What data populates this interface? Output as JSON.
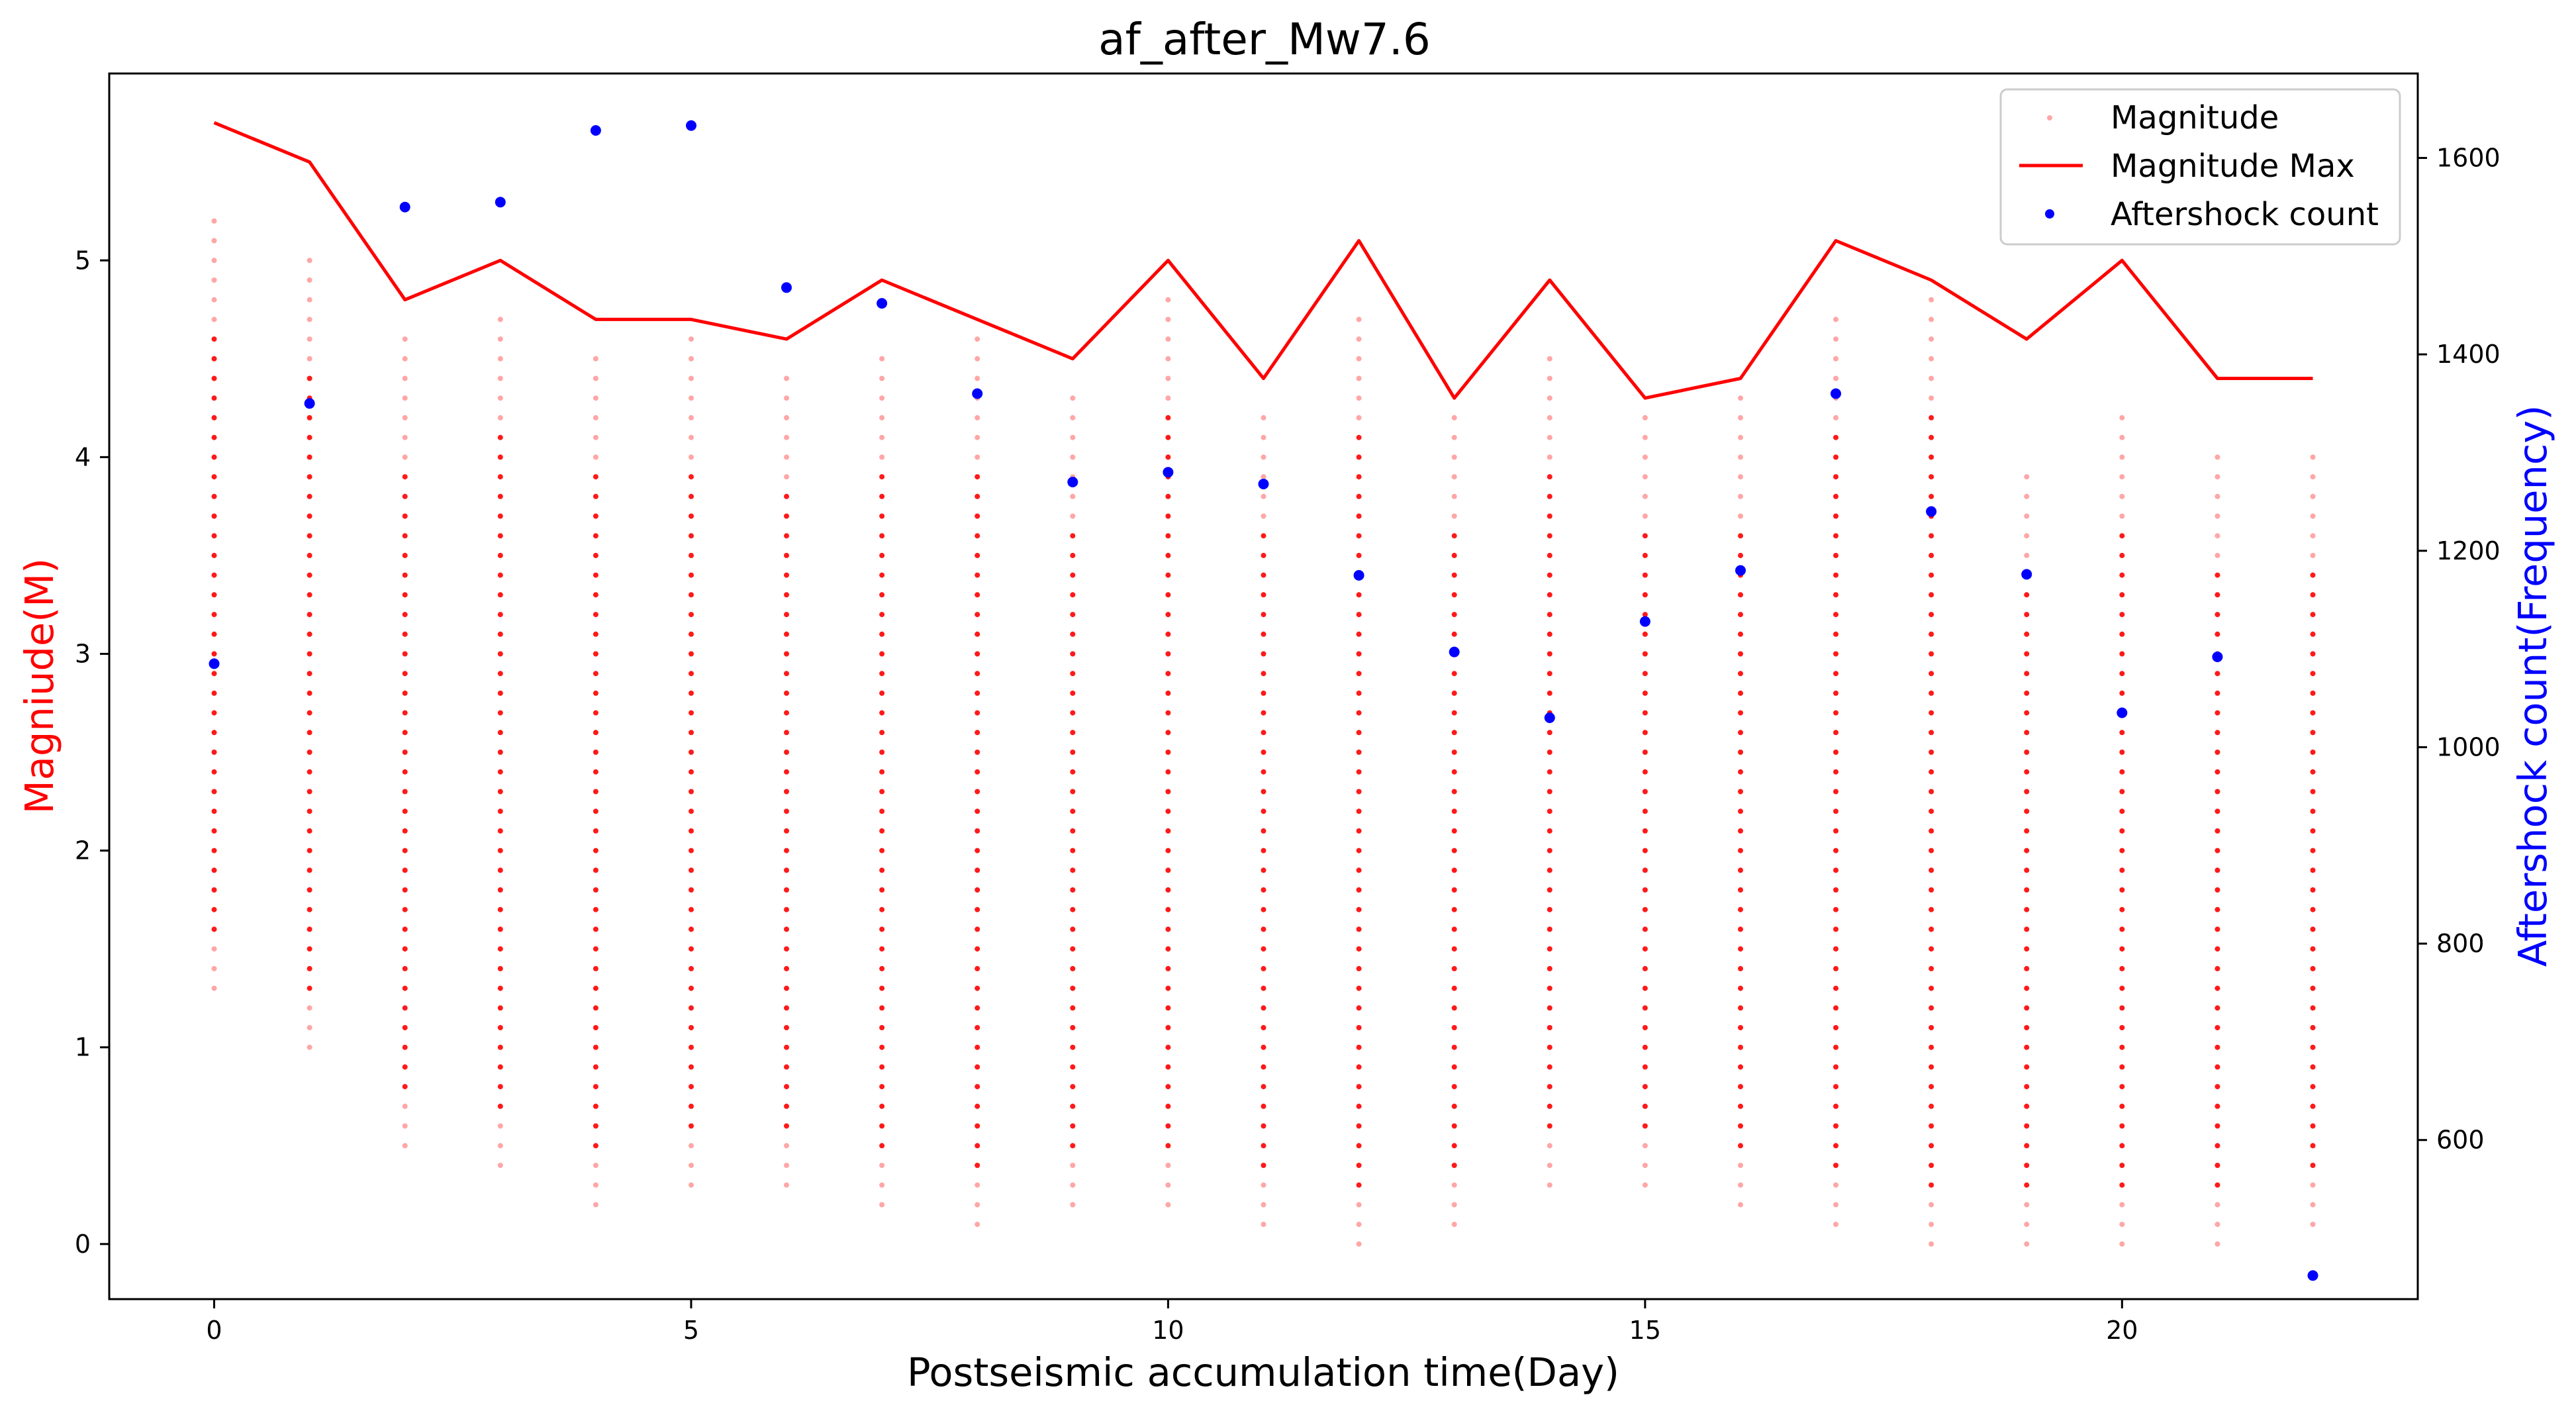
{
  "chart_data": {
    "type": "scatter",
    "title": "af_after_Mw7.6",
    "xlabel": "Postseismic accumulation time(Day)",
    "ylabel_left": "Magniude(M)",
    "ylabel_right": "Aftershock count(Frequency)",
    "xlim": [
      -1.1,
      23.1
    ],
    "ylim_left": [
      -0.28,
      5.95
    ],
    "ylim_right": [
      438,
      1686
    ],
    "x_ticks": [
      0,
      5,
      10,
      15,
      20
    ],
    "y_left_ticks": [
      0,
      1,
      2,
      3,
      4,
      5
    ],
    "y_right_ticks": [
      600,
      800,
      1000,
      1200,
      1400,
      1600
    ],
    "legend_position": "upper right",
    "colors": {
      "magnitude": "#ff0000",
      "magnitude_max": "#ff0000",
      "aftershock": "#0000ff",
      "left_label": "#ff0000",
      "right_label": "#0000ff"
    },
    "magnitude_ranges": [
      {
        "day": 0,
        "min": 1.3,
        "max": 5.2
      },
      {
        "day": 1,
        "min": 1.0,
        "max": 5.0
      },
      {
        "day": 2,
        "min": 0.5,
        "max": 4.6
      },
      {
        "day": 3,
        "min": 0.4,
        "max": 4.7
      },
      {
        "day": 4,
        "min": 0.2,
        "max": 4.5
      },
      {
        "day": 5,
        "min": 0.3,
        "max": 4.6
      },
      {
        "day": 6,
        "min": 0.3,
        "max": 4.4
      },
      {
        "day": 7,
        "min": 0.2,
        "max": 4.5
      },
      {
        "day": 8,
        "min": 0.1,
        "max": 4.6
      },
      {
        "day": 9,
        "min": 0.2,
        "max": 4.3
      },
      {
        "day": 10,
        "min": 0.2,
        "max": 4.8
      },
      {
        "day": 11,
        "min": 0.1,
        "max": 4.2
      },
      {
        "day": 12,
        "min": 0.0,
        "max": 4.7
      },
      {
        "day": 13,
        "min": 0.1,
        "max": 4.2
      },
      {
        "day": 14,
        "min": 0.3,
        "max": 4.5
      },
      {
        "day": 15,
        "min": 0.3,
        "max": 4.2
      },
      {
        "day": 16,
        "min": 0.2,
        "max": 4.3
      },
      {
        "day": 17,
        "min": 0.1,
        "max": 4.7
      },
      {
        "day": 18,
        "min": 0.0,
        "max": 4.8
      },
      {
        "day": 19,
        "min": 0.0,
        "max": 3.9
      },
      {
        "day": 20,
        "min": 0.0,
        "max": 4.2
      },
      {
        "day": 21,
        "min": 0.0,
        "max": 4.0
      },
      {
        "day": 22,
        "min": 0.1,
        "max": 4.0
      }
    ],
    "series": [
      {
        "name": "Magnitude Max",
        "x": [
          0,
          1,
          2,
          3,
          4,
          5,
          6,
          7,
          8,
          9,
          10,
          11,
          12,
          13,
          14,
          15,
          16,
          17,
          18,
          19,
          20,
          21,
          22
        ],
        "values": [
          5.7,
          5.5,
          4.8,
          5.0,
          4.7,
          4.7,
          4.6,
          4.9,
          4.7,
          4.5,
          5.0,
          4.4,
          5.1,
          4.3,
          4.9,
          4.3,
          4.4,
          5.1,
          4.9,
          4.6,
          5.0,
          4.4,
          4.4
        ]
      },
      {
        "name": "Aftershock count",
        "x": [
          0,
          1,
          2,
          3,
          4,
          5,
          6,
          7,
          8,
          9,
          10,
          11,
          12,
          13,
          14,
          15,
          16,
          17,
          18,
          19,
          20,
          21,
          22
        ],
        "values": [
          1085,
          1350,
          1550,
          1555,
          1628,
          1633,
          1468,
          1452,
          1360,
          1270,
          1280,
          1268,
          1175,
          1097,
          1030,
          1128,
          1180,
          1360,
          1240,
          1176,
          1035,
          1092,
          462
        ]
      }
    ],
    "legend": [
      "Magnitude",
      "Magnitude Max",
      "Aftershock count"
    ]
  }
}
